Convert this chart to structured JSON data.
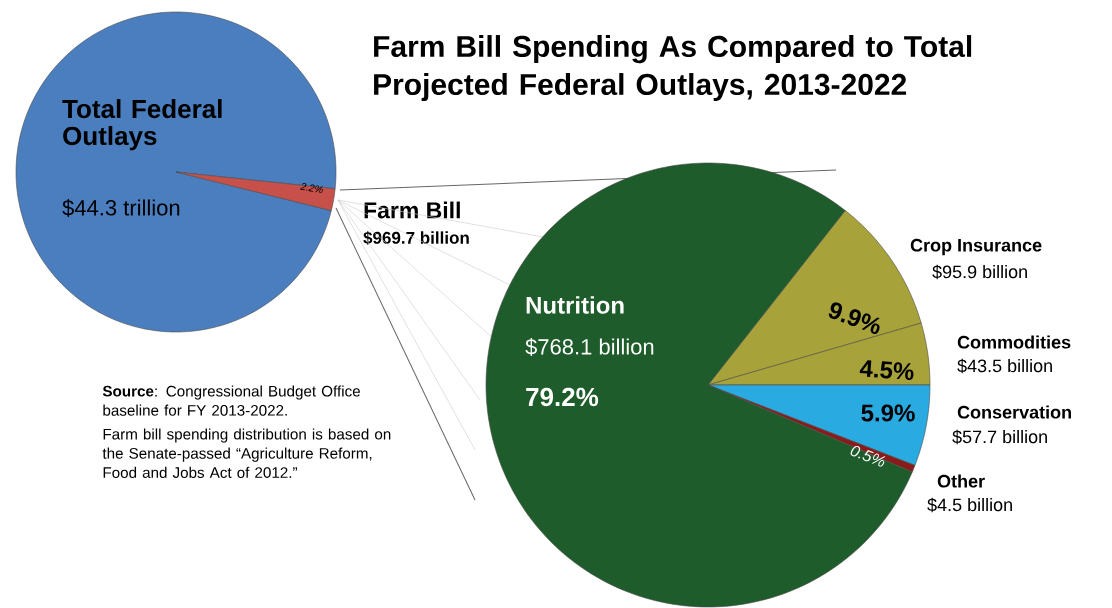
{
  "chart_data": [
    {
      "type": "pie",
      "title": "Farm Bill Spending As Compared to Total Projected Federal Outlays, 2013-2022",
      "categories": [
        "Total Federal Outlays",
        "Farm Bill"
      ],
      "values": [
        97.8,
        2.2
      ],
      "colors": [
        "#4a7ebf",
        "#c8504a"
      ],
      "value_labels": [
        null,
        "2.2%"
      ],
      "annotations": [
        "$44.3 trillion",
        "$969.7 billion"
      ]
    },
    {
      "type": "pie",
      "categories": [
        "Crop Insurance",
        "Commodities",
        "Conservation",
        "Other",
        "Nutrition"
      ],
      "values": [
        9.9,
        4.5,
        5.9,
        0.5,
        79.2
      ],
      "colors": [
        "#a8a23a",
        "#a8a23a",
        "#29abe2",
        "#8b1a1a",
        "#1e5c2b"
      ],
      "value_labels": [
        "9.9%",
        "4.5%",
        "5.9%",
        "0.5%",
        "79.2%"
      ],
      "annotations": [
        "$95.9 billion",
        "$43.5 billion",
        "$57.7 billion",
        "$4.5 billion",
        "$768.1 billion",
        "**Source**: Congressional Budget Office baseline for FY 2013-2022.",
        "Farm bill spending distribution is based on the Senate-passed “Agriculture Reform, Food and Jobs Act of 2012.”"
      ]
    }
  ]
}
